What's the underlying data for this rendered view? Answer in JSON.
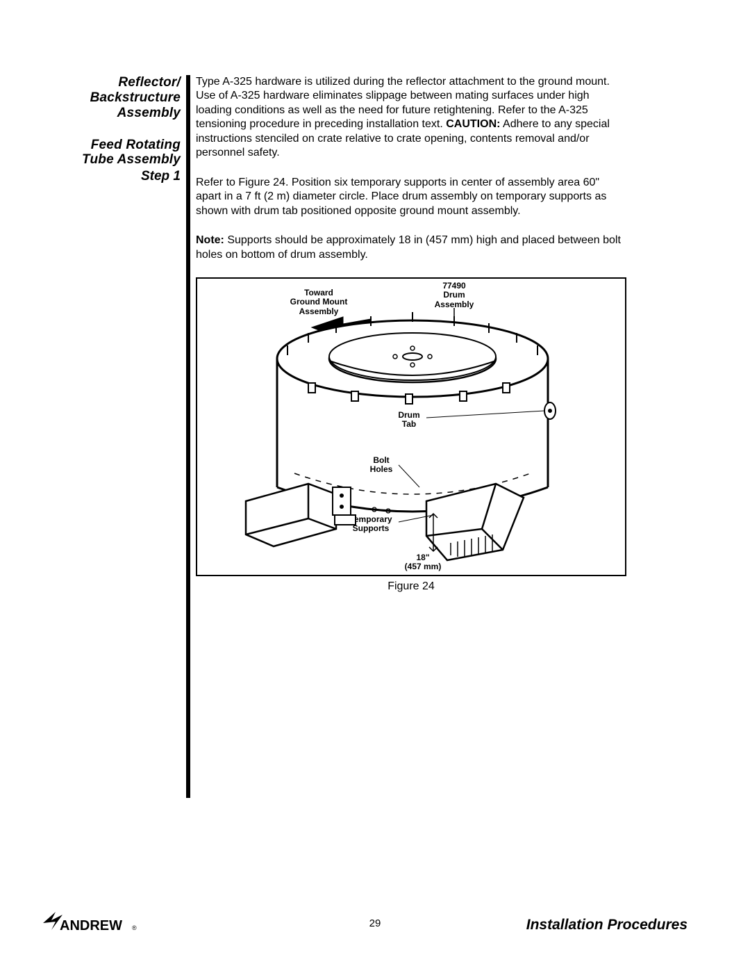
{
  "sidebar": {
    "section1": "Reflector/ Backstructure Assembly",
    "section2": "Feed Rotating Tube Assembly",
    "step": "Step 1"
  },
  "paragraphs": {
    "p1_pre": "Type A-325 hardware is utilized during the reflector attachment to the ground mount. Use of A-325 hardware eliminates slippage between mating surfaces under high loading conditions as well as the need for future retightening. Refer to the A-325 tensioning procedure in preceding installation text. ",
    "p1_caution_label": "CAUTION:",
    "p1_post": " Adhere to any special instructions stenciled on crate relative to crate opening, contents removal and/or personnel safety.",
    "p2": "Refer to Figure 24. Position six temporary supports in center of assembly area 60\" apart in a 7 ft (2 m) diameter circle. Place drum assembly on temporary supports as shown with drum tab positioned opposite ground mount assembly.",
    "p3_note_label": "Note:",
    "p3_post": " Supports should be approximately 18 in (457 mm) high and placed between bolt holes on bottom of drum assembly."
  },
  "figure": {
    "caption": "Figure 24",
    "labels": {
      "toward_ground": "Toward\nGround Mount\nAssembly",
      "drum_assembly_id": "77490\nDrum\nAssembly",
      "drum_tab": "Drum\nTab",
      "bolt_holes": "Bolt\nHoles",
      "temp_supports": "Temporary\nSupports",
      "height": "18\"\n(457 mm)"
    }
  },
  "footer": {
    "brand": "ANDREW",
    "page_number": "29",
    "title": "Installation Procedures"
  },
  "colors": {
    "text": "#000000",
    "bg": "#ffffff"
  }
}
